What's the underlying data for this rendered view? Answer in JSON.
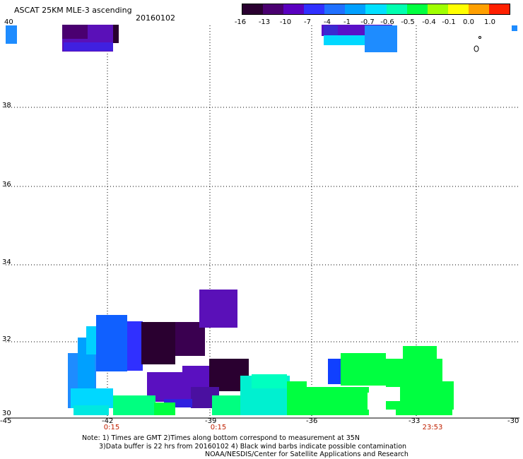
{
  "header": {
    "title": "ASCAT 25KM MLE-3 ascending",
    "date": "20160102"
  },
  "colorbar": {
    "labels": [
      "-16",
      "-13",
      "-10",
      "-7",
      "-4",
      "-1",
      "-0.7",
      "-0.6",
      "-0.5",
      "-0.4",
      "-0.1",
      "0.0",
      "1.0"
    ],
    "colors": [
      "#2a0030",
      "#4a0070",
      "#5a00c0",
      "#3030ff",
      "#2070ff",
      "#00a0ff",
      "#00e0ff",
      "#00ffb0",
      "#00ff40",
      "#a0ff00",
      "#ffff00",
      "#ffa000",
      "#ff2000"
    ]
  },
  "axes": {
    "y_ticks": [
      "40",
      "38",
      "36",
      "34",
      "32",
      "30"
    ],
    "x_ticks": [
      "-45",
      "-42",
      "-39",
      "-36",
      "-33",
      "-30"
    ],
    "time_labels": [
      "0:15",
      "0:15",
      "23:53"
    ]
  },
  "notes": {
    "line1": "Note: 1) Times are GMT 2)Times along bottom correspond to measurement at 35N",
    "line2": "3)Data buffer is 22 hrs from 20160102 4) Black wind barbs indicate possible contamination",
    "line3": "NOAA/NESDIS/Center for Satellite Applications and Research"
  },
  "colors": {
    "grid": "#000000",
    "time_label": "#c02000"
  }
}
